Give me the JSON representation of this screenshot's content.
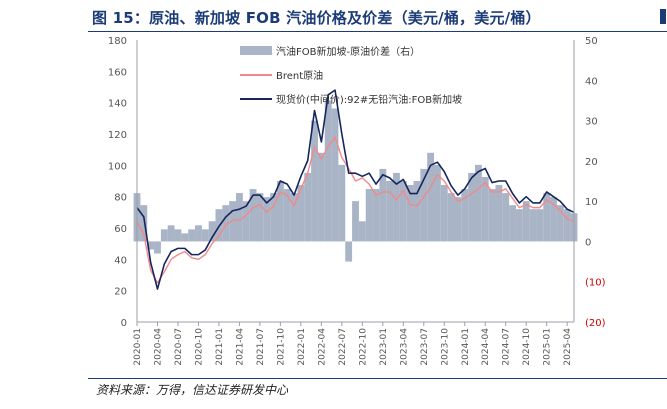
{
  "figure": {
    "title": "图 15：原油、新加坡 FOB 汽油价格及价差（美元/桶，美元/桶）",
    "source": "资料来源：万得，信达证券研发中心"
  },
  "colors": {
    "spread": "#a9b4c6",
    "brent": "#f08a8a",
    "gasoline": "#16265e",
    "neg_label": "#cc0000",
    "title": "#1c3c78"
  },
  "chart_data": {
    "type": "line",
    "legend_position": "top",
    "grid": false,
    "x": [
      "2020-01",
      "2020-02",
      "2020-03",
      "2020-04",
      "2020-05",
      "2020-06",
      "2020-07",
      "2020-08",
      "2020-09",
      "2020-10",
      "2020-11",
      "2020-12",
      "2021-01",
      "2021-02",
      "2021-03",
      "2021-04",
      "2021-05",
      "2021-06",
      "2021-07",
      "2021-08",
      "2021-09",
      "2021-10",
      "2021-11",
      "2021-12",
      "2022-01",
      "2022-02",
      "2022-03",
      "2022-04",
      "2022-05",
      "2022-06",
      "2022-07",
      "2022-08",
      "2022-09",
      "2022-10",
      "2022-11",
      "2022-12",
      "2023-01",
      "2023-02",
      "2023-03",
      "2023-04",
      "2023-05",
      "2023-06",
      "2023-07",
      "2023-08",
      "2023-09",
      "2023-10",
      "2023-11",
      "2023-12",
      "2024-01",
      "2024-02",
      "2024-03",
      "2024-04",
      "2024-05",
      "2024-06",
      "2024-07",
      "2024-08",
      "2024-09",
      "2024-10",
      "2024-11",
      "2024-12",
      "2025-01",
      "2025-02",
      "2025-03",
      "2025-04",
      "2025-05"
    ],
    "x_tick_labels": [
      "2020-01",
      "2020-04",
      "2020-07",
      "2020-10",
      "2021-01",
      "2021-04",
      "2021-07",
      "2021-10",
      "2022-01",
      "2022-04",
      "2022-07",
      "2022-10",
      "2023-01",
      "2023-04",
      "2023-07",
      "2023-10",
      "2024-01",
      "2024-04",
      "2024-07",
      "2024-10",
      "2025-01",
      "2025-04"
    ],
    "y_left": {
      "min": 0,
      "max": 180,
      "ticks": [
        0,
        20,
        40,
        60,
        80,
        100,
        120,
        140,
        160,
        180
      ]
    },
    "y_right": {
      "min": -20,
      "max": 50,
      "ticks": [
        -20,
        -10,
        0,
        10,
        20,
        30,
        40,
        50
      ],
      "tick_labels": [
        "(20)",
        "(10)",
        "0",
        "10",
        "20",
        "30",
        "40",
        "50"
      ]
    },
    "series": [
      {
        "name": "汽油FOB新加坡-原油价差（右）",
        "kind": "area",
        "axis": "right",
        "values": [
          12,
          9,
          -2,
          -3,
          3,
          4,
          3,
          2,
          3,
          4,
          3,
          5,
          8,
          9,
          10,
          12,
          10,
          13,
          12,
          11,
          12,
          15,
          13,
          12,
          14,
          17,
          30,
          22,
          35,
          33,
          19,
          -5,
          10,
          5,
          13,
          13,
          18,
          15,
          17,
          15,
          14,
          15,
          18,
          22,
          19,
          14,
          12,
          11,
          13,
          17,
          19,
          16,
          13,
          14,
          12,
          9,
          8,
          10,
          8,
          8,
          12,
          11,
          9,
          8,
          7
        ]
      },
      {
        "name": "Brent原油",
        "kind": "line",
        "axis": "left",
        "values": [
          64,
          56,
          33,
          25,
          32,
          40,
          43,
          45,
          41,
          40,
          43,
          50,
          55,
          62,
          65,
          65,
          68,
          73,
          75,
          70,
          74,
          83,
          81,
          74,
          85,
          95,
          112,
          104,
          112,
          118,
          105,
          98,
          90,
          92,
          88,
          81,
          83,
          83,
          78,
          84,
          75,
          74,
          80,
          86,
          94,
          90,
          83,
          77,
          79,
          82,
          85,
          89,
          83,
          83,
          85,
          79,
          73,
          75,
          73,
          73,
          78,
          75,
          71,
          66,
          64
        ]
      },
      {
        "name": "现货价(中间价):92#无铅汽油:FOB新加坡",
        "kind": "line",
        "axis": "left",
        "values": [
          73,
          67,
          38,
          21,
          37,
          45,
          47,
          47,
          43,
          43,
          46,
          54,
          61,
          67,
          71,
          72,
          74,
          81,
          81,
          76,
          80,
          90,
          88,
          81,
          93,
          103,
          135,
          115,
          145,
          148,
          120,
          95,
          95,
          93,
          95,
          88,
          94,
          92,
          88,
          91,
          82,
          82,
          91,
          100,
          102,
          96,
          87,
          81,
          85,
          92,
          96,
          98,
          89,
          90,
          90,
          82,
          76,
          80,
          76,
          76,
          83,
          80,
          77,
          72,
          70
        ]
      }
    ]
  }
}
